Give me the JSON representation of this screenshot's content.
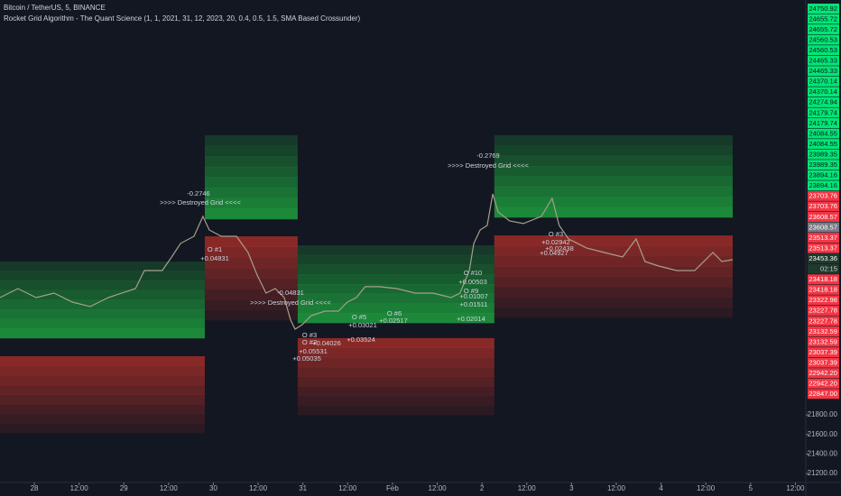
{
  "chart_data": {
    "type": "line",
    "title": "Bitcoin / TetherUS, 5, BINANCE",
    "subtitle": "Rocket Grid Algorithm - The Quant Science (1, 1, 2021, 31, 12, 2023, 20, 0.4, 0.5, 1.5, SMA Based Crossunder)",
    "color": "#a89f8c",
    "x": [
      -9.2,
      -4.4,
      0.5,
      5.3,
      10.2,
      15.0,
      19.8,
      27.1,
      29.5,
      34.3,
      36.8,
      39.2,
      42.8,
      45.2,
      46.9,
      50.1,
      54.2,
      57.3,
      59.7,
      62.1,
      64.6,
      67.0,
      68.7,
      69.9,
      71.8,
      74.2,
      77.9,
      81.5,
      83.9,
      86.3,
      88.7,
      92.4,
      97.2,
      102.1,
      106.9,
      111.7,
      114.1,
      116.6,
      117.8,
      119.5,
      121.4,
      122.9,
      124.3,
      127.4,
      131.1,
      135.9,
      138.8,
      140.7,
      143.2,
      148.0,
      152.8,
      157.7,
      161.3,
      163.7,
      167.4,
      172.2,
      177.0,
      181.9,
      184.3,
      187.2
    ],
    "values": [
      23000,
      23092,
      23000,
      23046,
      22954,
      22908,
      23000,
      23092,
      23277,
      23277,
      23415,
      23554,
      23627,
      23831,
      23692,
      23627,
      23627,
      23461,
      23231,
      23046,
      23092,
      23000,
      22769,
      22677,
      22723,
      22815,
      22861,
      22861,
      22954,
      23000,
      23111,
      23111,
      23092,
      23046,
      23046,
      23000,
      23046,
      23277,
      23554,
      23692,
      23738,
      24061,
      23877,
      23784,
      23757,
      23831,
      24015,
      23738,
      23600,
      23508,
      23461,
      23415,
      23600,
      23369,
      23323,
      23277,
      23277,
      23461,
      23369,
      23388
    ],
    "xlim": [
      -9.2,
      206.8
    ],
    "ylim": [
      21108,
      26045
    ],
    "xticks": [
      {
        "value": 0,
        "label": "28"
      },
      {
        "value": 12,
        "label": "12:00"
      },
      {
        "value": 24,
        "label": "29"
      },
      {
        "value": 36,
        "label": "12:00"
      },
      {
        "value": 48,
        "label": "30"
      },
      {
        "value": 60,
        "label": "12:00"
      },
      {
        "value": 72,
        "label": "31"
      },
      {
        "value": 84,
        "label": "12:00"
      },
      {
        "value": 96,
        "label": "Feb"
      },
      {
        "value": 108,
        "label": "12:00"
      },
      {
        "value": 120,
        "label": "2"
      },
      {
        "value": 132,
        "label": "12:00"
      },
      {
        "value": 144,
        "label": "3"
      },
      {
        "value": 156,
        "label": "12:00"
      },
      {
        "value": 168,
        "label": "4"
      },
      {
        "value": 180,
        "label": "12:00"
      },
      {
        "value": 192,
        "label": "5"
      },
      {
        "value": 204,
        "label": "12:00"
      }
    ],
    "yticks": [
      {
        "value": 21200,
        "label": "21200.00"
      },
      {
        "value": 21400,
        "label": "21400.00"
      },
      {
        "value": 21600,
        "label": "21600.00"
      },
      {
        "value": 21800,
        "label": "21800.00"
      }
    ],
    "zones": [
      {
        "x": [
          -9.2,
          45.7
        ],
        "green": [
          22585,
          23369
        ],
        "red": [
          21615,
          22400
        ]
      },
      {
        "x": [
          45.7,
          70.6
        ],
        "green": [
          23803,
          24661
        ],
        "red": [
          22769,
          23627
        ]
      },
      {
        "x": [
          70.6,
          123.3
        ],
        "green": [
          22741,
          23535
        ],
        "red": [
          21800,
          22585
        ]
      },
      {
        "x": [
          123.3,
          187.2
        ],
        "green": [
          23821,
          24661
        ],
        "red": [
          22797,
          23636
        ]
      }
    ],
    "green_color": "#1e9e3e",
    "red_color": "#b2302a",
    "level_labels": [
      {
        "value": 24750.92,
        "color": "#00e676"
      },
      {
        "value": 24655.72,
        "color": "#00e676"
      },
      {
        "value": 24655.72,
        "color": "#00e676"
      },
      {
        "value": 24560.53,
        "color": "#00e676"
      },
      {
        "value": 24560.53,
        "color": "#00e676"
      },
      {
        "value": 24465.33,
        "color": "#00e676"
      },
      {
        "value": 24465.33,
        "color": "#00e676"
      },
      {
        "value": 24370.14,
        "color": "#00e676"
      },
      {
        "value": 24370.14,
        "color": "#00e676"
      },
      {
        "value": 24274.94,
        "color": "#00e676"
      },
      {
        "value": 24179.74,
        "color": "#00e676"
      },
      {
        "value": 24179.74,
        "color": "#00e676"
      },
      {
        "value": 24084.55,
        "color": "#00e676"
      },
      {
        "value": 24084.55,
        "color": "#00e676"
      },
      {
        "value": 23989.35,
        "color": "#00e676"
      },
      {
        "value": 23989.35,
        "color": "#00e676"
      },
      {
        "value": 23894.16,
        "color": "#00e676"
      },
      {
        "value": 23894.16,
        "color": "#00e676"
      },
      {
        "value": 23703.76,
        "color": "#f23645"
      },
      {
        "value": 23703.76,
        "color": "#f23645"
      },
      {
        "value": 23608.57,
        "color": "#f23645"
      },
      {
        "value": 23608.57,
        "color": "#787b86"
      },
      {
        "value": 23513.37,
        "color": "#f23645"
      },
      {
        "value": 23513.37,
        "color": "#f23645"
      }
    ],
    "current_price": 23453.36,
    "countdown": "02:15",
    "lower_labels": [
      {
        "value": 23418.18,
        "color": "#f23645"
      },
      {
        "value": 23418.18,
        "color": "#f23645"
      },
      {
        "value": 23322.98,
        "color": "#f23645"
      },
      {
        "value": 23227.78,
        "color": "#f23645"
      },
      {
        "value": 23227.78,
        "color": "#f23645"
      },
      {
        "value": 23132.59,
        "color": "#f23645"
      },
      {
        "value": 23132.59,
        "color": "#f23645"
      },
      {
        "value": 23037.39,
        "color": "#f23645"
      },
      {
        "value": 23037.39,
        "color": "#f23645"
      },
      {
        "value": {
          "value": 22942.2,
          "label": "22942.20"
        },
        "color": "#f23645"
      },
      {
        "value": {
          "value": 22942.2,
          "label": "22942.20"
        },
        "color": "#f23645"
      },
      {
        "value": {
          "value": 22847,
          "label": "22847.00"
        },
        "color": "#f23645"
      }
    ],
    "annotations": [
      "-0.2746",
      ">>>> Destroyed Grid <<<<",
      "O #1",
      "+0.04831",
      "-0.04831",
      ">>>> Destroyed Grid <<<<",
      "O #2",
      "+0.05531",
      "+0.05035",
      "O #3",
      "+0.04026",
      "O #5",
      "+0.03021",
      "+0.03524",
      "O #6",
      "+0.02517",
      "-0.2769",
      ">>>> Destroyed Grid <<<<",
      "O #10",
      "+0.00503",
      "O #9",
      "+0.01007",
      "+0.01511",
      "+0.02014",
      "O #3",
      "+0.02942",
      "+0.02438",
      "+0.04927"
    ]
  }
}
